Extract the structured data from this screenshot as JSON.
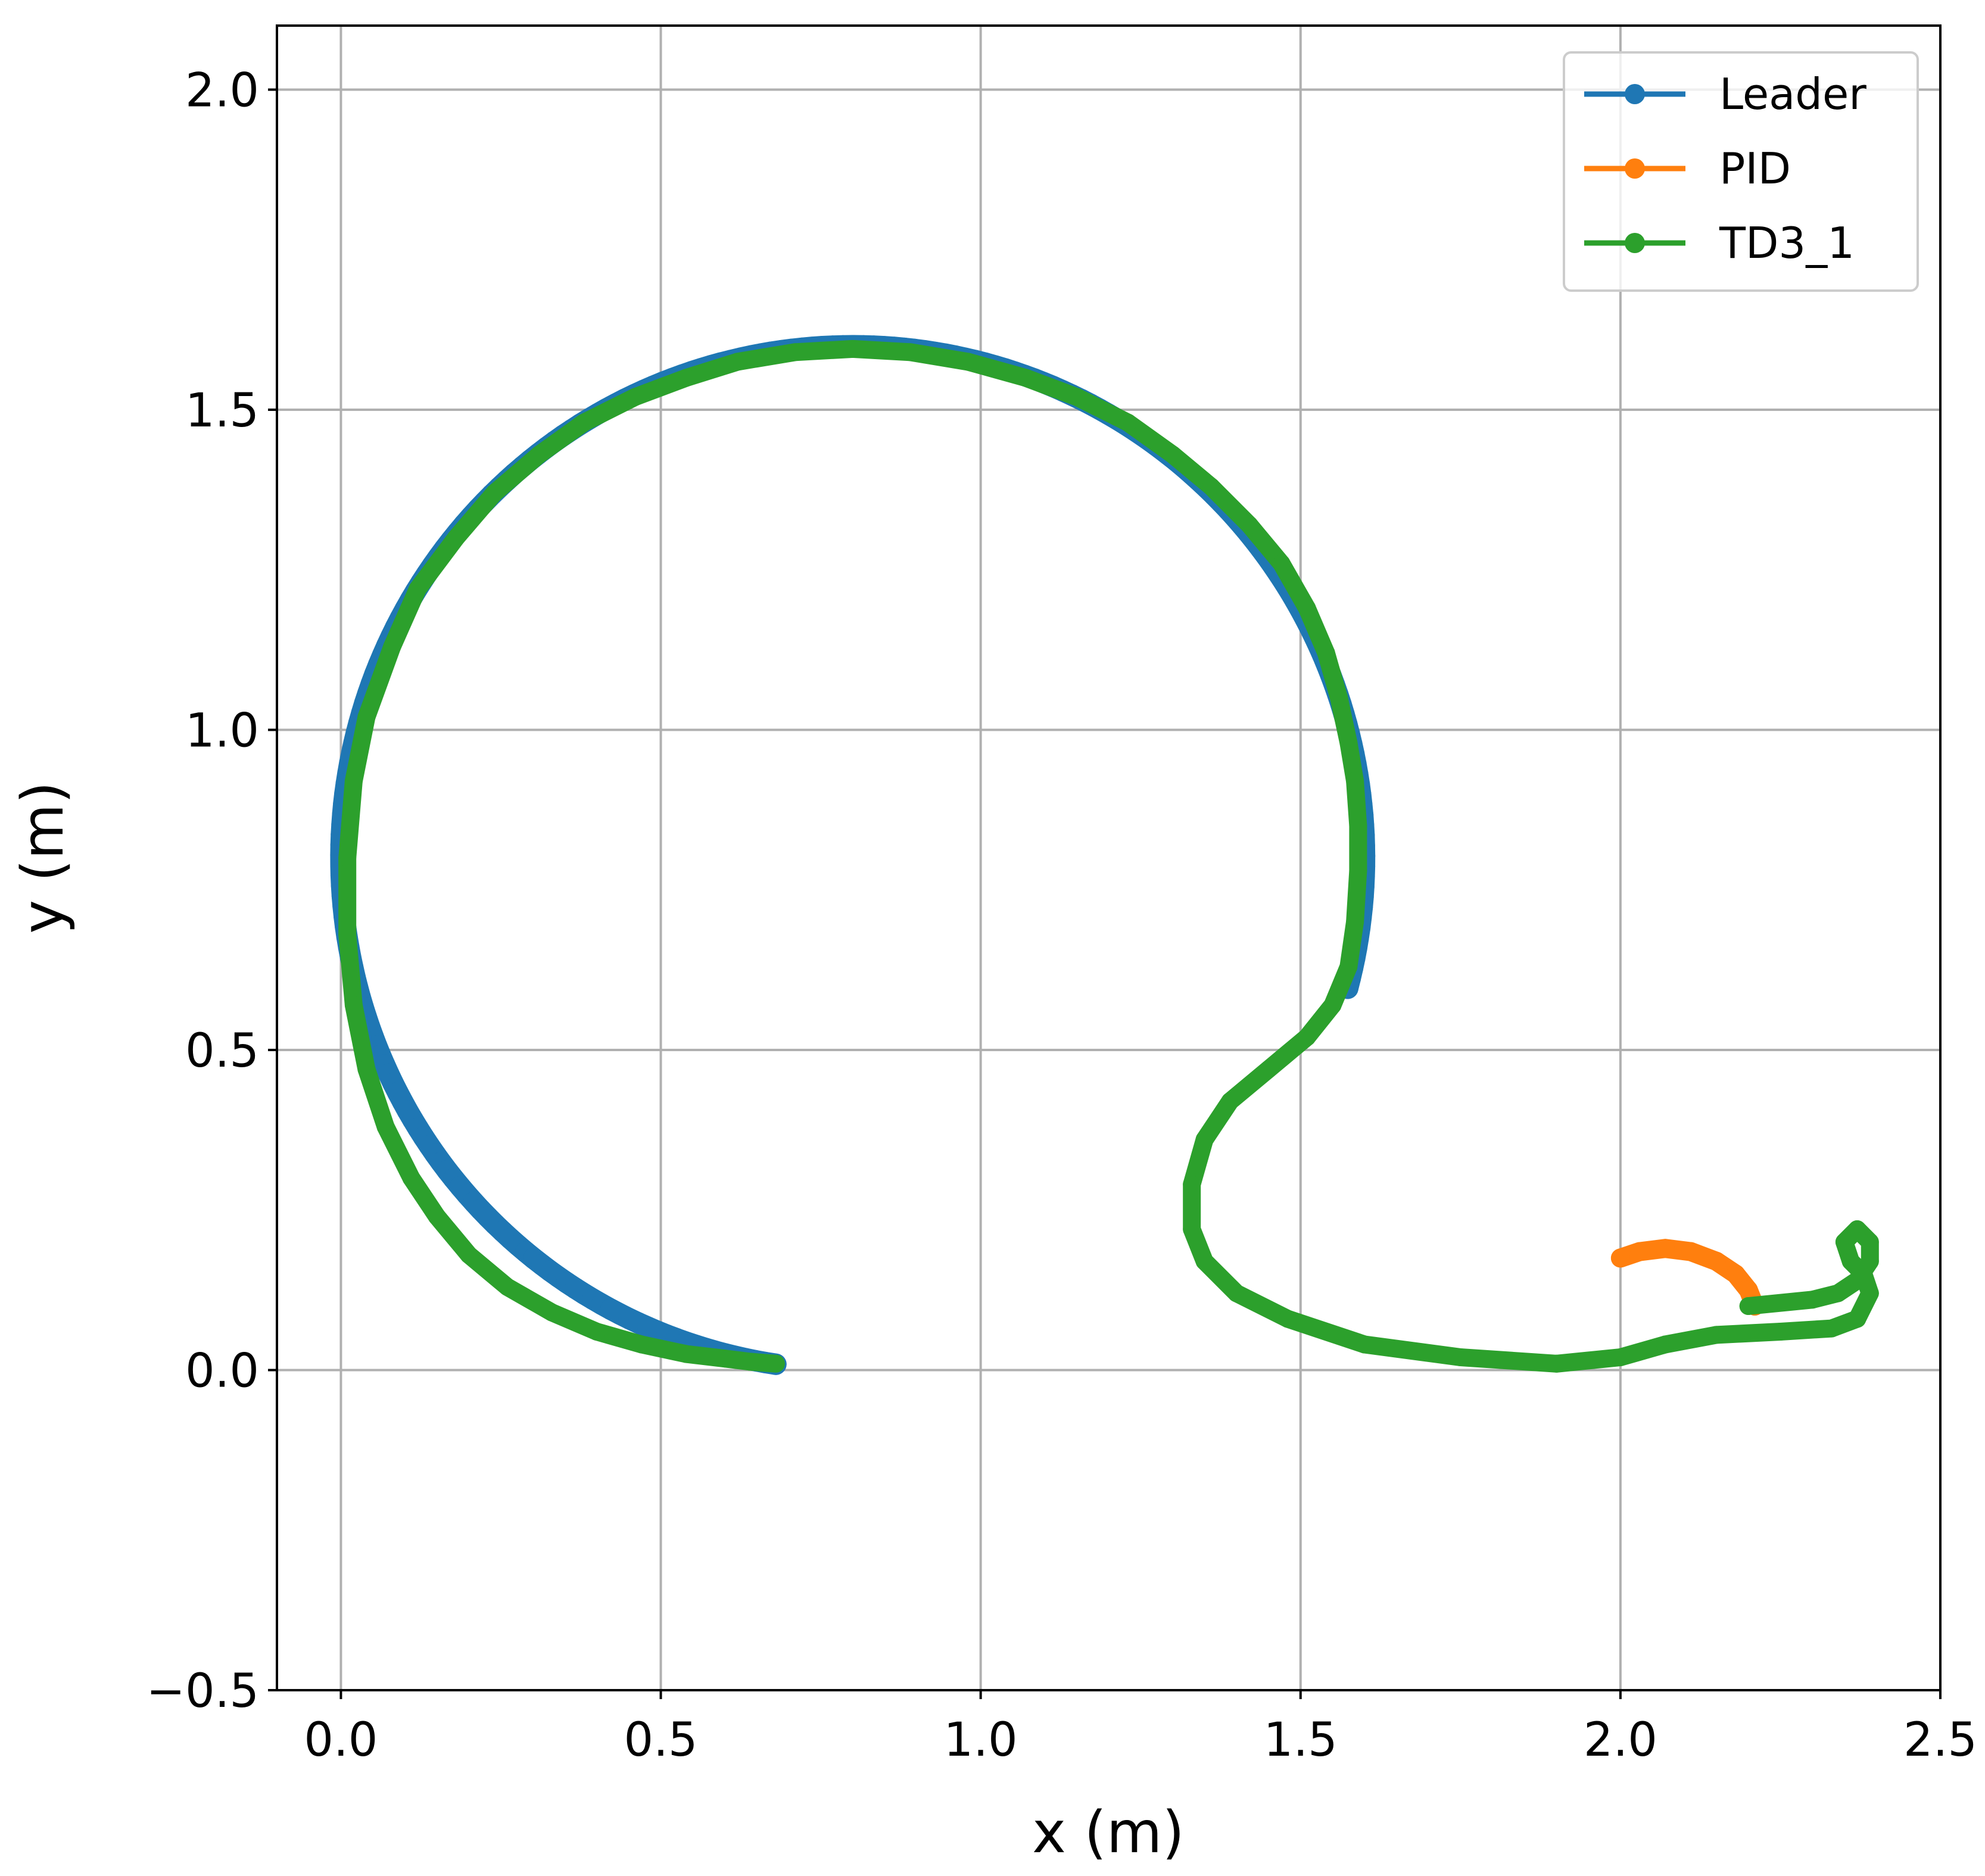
{
  "chart_data": {
    "type": "line",
    "title": "",
    "xlabel": "x (m)",
    "ylabel": "y (m)",
    "xlim": [
      -0.1,
      2.5
    ],
    "ylim": [
      -0.5,
      2.1
    ],
    "xticks": [
      0.0,
      0.5,
      1.0,
      1.5,
      2.0,
      2.5
    ],
    "xtick_labels": [
      "0.0",
      "0.5",
      "1.0",
      "1.5",
      "2.0",
      "2.5"
    ],
    "yticks": [
      -0.5,
      0.0,
      0.5,
      1.0,
      1.5,
      2.0
    ],
    "ytick_labels": [
      "−0.5",
      "0.0",
      "0.5",
      "1.0",
      "1.5",
      "2.0"
    ],
    "grid": true,
    "legend_position": "top-right",
    "series": [
      {
        "name": "Leader",
        "color": "#1f77b4",
        "marker": "circle",
        "leader_circle": {
          "center_x": 0.8,
          "center_y": 0.8,
          "radius": 0.8,
          "from_point": [
            1.56,
            0.6
          ],
          "to_point": [
            0.68,
            0.01
          ]
        },
        "x": [],
        "y": []
      },
      {
        "name": "PID",
        "color": "#ff7f0e",
        "marker": "circle",
        "x": [
          2.0,
          2.03,
          2.07,
          2.11,
          2.15,
          2.18,
          2.2,
          2.21
        ],
        "y": [
          0.175,
          0.185,
          0.19,
          0.185,
          0.17,
          0.15,
          0.125,
          0.1
        ]
      },
      {
        "name": "TD3_1",
        "color": "#2ca02c",
        "marker": "circle",
        "x": [
          2.2,
          2.3,
          2.34,
          2.37,
          2.39,
          2.39,
          2.37,
          2.35,
          2.36,
          2.38,
          2.39,
          2.37,
          2.33,
          2.25,
          2.15,
          2.07,
          2.0,
          1.9,
          1.75,
          1.6,
          1.48,
          1.4,
          1.35,
          1.33,
          1.33,
          1.35,
          1.39,
          1.45,
          1.51,
          1.55,
          1.575,
          1.585,
          1.59,
          1.59,
          1.585,
          1.575,
          1.56,
          1.54,
          1.51,
          1.47,
          1.42,
          1.36,
          1.3,
          1.23,
          1.15,
          1.07,
          0.98,
          0.89,
          0.8,
          0.71,
          0.62,
          0.54,
          0.46,
          0.38,
          0.31,
          0.24,
          0.18,
          0.12,
          0.08,
          0.04,
          0.02,
          0.01,
          0.01,
          0.02,
          0.04,
          0.07,
          0.11,
          0.15,
          0.2,
          0.26,
          0.33,
          0.4,
          0.47,
          0.54,
          0.6,
          0.64,
          0.68
        ],
        "y": [
          0.1,
          0.11,
          0.12,
          0.14,
          0.17,
          0.2,
          0.22,
          0.2,
          0.17,
          0.15,
          0.12,
          0.08,
          0.065,
          0.06,
          0.055,
          0.04,
          0.02,
          0.01,
          0.02,
          0.04,
          0.08,
          0.12,
          0.17,
          0.22,
          0.29,
          0.36,
          0.42,
          0.47,
          0.52,
          0.57,
          0.63,
          0.7,
          0.78,
          0.85,
          0.92,
          0.98,
          1.05,
          1.12,
          1.19,
          1.26,
          1.32,
          1.38,
          1.43,
          1.48,
          1.52,
          1.55,
          1.575,
          1.59,
          1.595,
          1.59,
          1.575,
          1.55,
          1.52,
          1.48,
          1.43,
          1.37,
          1.3,
          1.22,
          1.13,
          1.02,
          0.92,
          0.8,
          0.68,
          0.57,
          0.47,
          0.38,
          0.3,
          0.24,
          0.18,
          0.13,
          0.09,
          0.06,
          0.04,
          0.025,
          0.018,
          0.013,
          0.01
        ]
      }
    ]
  }
}
